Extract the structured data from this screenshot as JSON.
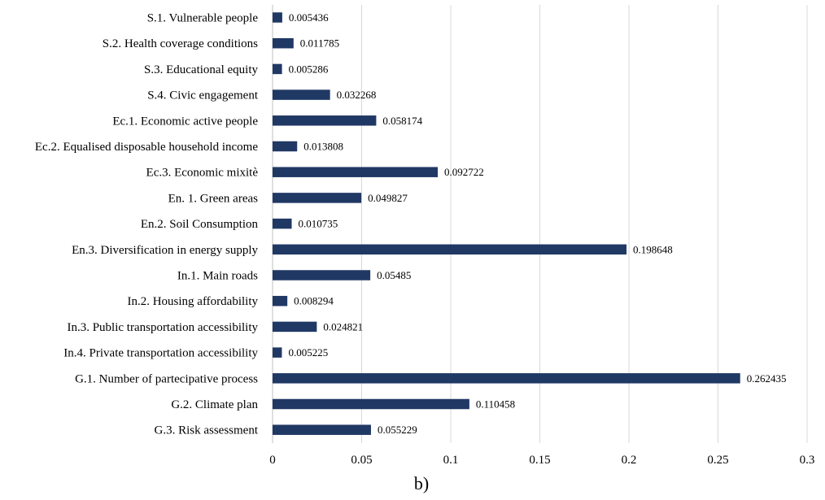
{
  "caption": "b)",
  "colors": {
    "bar": "#203864"
  },
  "chart_data": {
    "type": "bar",
    "orientation": "horizontal",
    "categories": [
      "S.1. Vulnerable people",
      "S.2. Health coverage conditions",
      "S.3. Educational equity",
      "S.4. Civic engagement",
      "Ec.1. Economic active people",
      "Ec.2. Equalised disposable household income",
      "Ec.3. Economic mixitè",
      "En. 1. Green areas",
      "En.2. Soil Consumption",
      "En.3. Diversification in energy supply",
      "In.1. Main roads",
      "In.2. Housing affordability",
      "In.3. Public transportation accessibility",
      "In.4. Private transportation accessibility",
      "G.1. Number of partecipative process",
      "G.2. Climate plan",
      "G.3. Risk assessment"
    ],
    "values": [
      0.005436,
      0.011785,
      0.005286,
      0.032268,
      0.058174,
      0.013808,
      0.092722,
      0.049827,
      0.010735,
      0.198648,
      0.05485,
      0.008294,
      0.024821,
      0.005225,
      0.262435,
      0.110458,
      0.055229
    ],
    "value_labels": [
      "0.005436",
      "0.011785",
      "0.005286",
      "0.032268",
      "0.058174",
      "0.013808",
      "0.092722",
      "0.049827",
      "0.010735",
      "0.198648",
      "0.05485",
      "0.008294",
      "0.024821",
      "0.005225",
      "0.262435",
      "0.110458",
      "0.055229"
    ],
    "xlim": [
      0,
      0.3
    ],
    "xticks": [
      0,
      0.05,
      0.1,
      0.15,
      0.2,
      0.25,
      0.3
    ],
    "xtick_labels": [
      "0",
      "0.05",
      "0.1",
      "0.15",
      "0.2",
      "0.25",
      "0.3"
    ],
    "title": "",
    "xlabel": "",
    "ylabel": "",
    "grid": "vertical",
    "legend": "none"
  }
}
